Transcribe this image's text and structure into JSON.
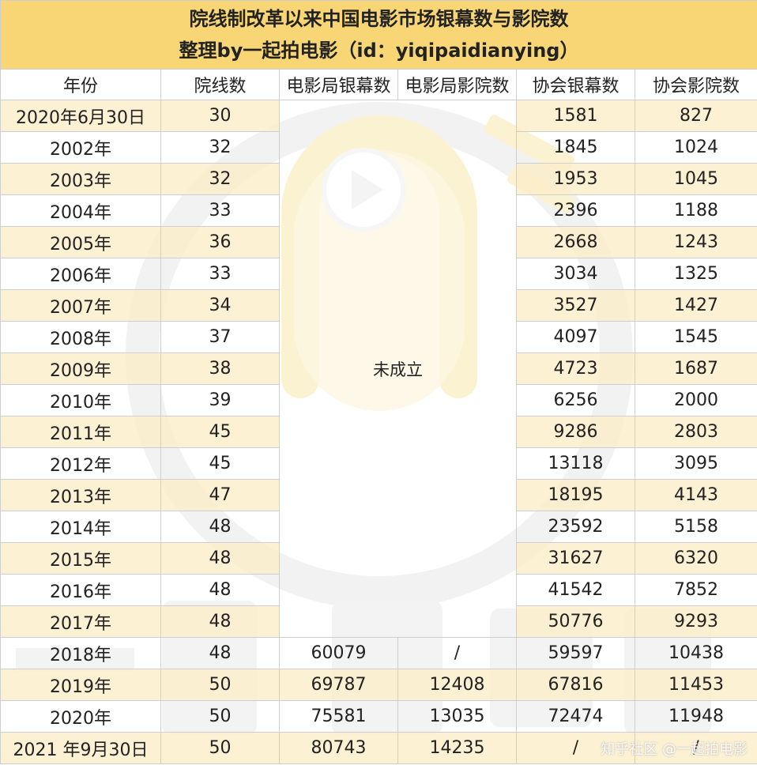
{
  "title": {
    "line1": "院线制改革以来中国电影市场银幕数与影院数",
    "line2": "整理by一起拍电影（id：yiqipaidianying）"
  },
  "columns": [
    "年份",
    "院线数",
    "电影局银幕数",
    "电影局影院数",
    "协会银幕数",
    "协会影院数"
  ],
  "merged_note": "未成立",
  "rows": [
    {
      "year": "2020年6月30日",
      "chains": "30",
      "screens_bureau": "",
      "cinemas_bureau": "",
      "screens_assoc": "1581",
      "cinemas_assoc": "827"
    },
    {
      "year": "2002年",
      "chains": "32",
      "screens_bureau": "",
      "cinemas_bureau": "",
      "screens_assoc": "1845",
      "cinemas_assoc": "1024"
    },
    {
      "year": "2003年",
      "chains": "32",
      "screens_bureau": "",
      "cinemas_bureau": "",
      "screens_assoc": "1953",
      "cinemas_assoc": "1045"
    },
    {
      "year": "2004年",
      "chains": "33",
      "screens_bureau": "",
      "cinemas_bureau": "",
      "screens_assoc": "2396",
      "cinemas_assoc": "1188"
    },
    {
      "year": "2005年",
      "chains": "36",
      "screens_bureau": "",
      "cinemas_bureau": "",
      "screens_assoc": "2668",
      "cinemas_assoc": "1243"
    },
    {
      "year": "2006年",
      "chains": "33",
      "screens_bureau": "",
      "cinemas_bureau": "",
      "screens_assoc": "3034",
      "cinemas_assoc": "1325"
    },
    {
      "year": "2007年",
      "chains": "34",
      "screens_bureau": "",
      "cinemas_bureau": "",
      "screens_assoc": "3527",
      "cinemas_assoc": "1427"
    },
    {
      "year": "2008年",
      "chains": "37",
      "screens_bureau": "",
      "cinemas_bureau": "",
      "screens_assoc": "4097",
      "cinemas_assoc": "1545"
    },
    {
      "year": "2009年",
      "chains": "38",
      "screens_bureau": "",
      "cinemas_bureau": "",
      "screens_assoc": "4723",
      "cinemas_assoc": "1687"
    },
    {
      "year": "2010年",
      "chains": "39",
      "screens_bureau": "",
      "cinemas_bureau": "",
      "screens_assoc": "6256",
      "cinemas_assoc": "2000"
    },
    {
      "year": "2011年",
      "chains": "45",
      "screens_bureau": "",
      "cinemas_bureau": "",
      "screens_assoc": "9286",
      "cinemas_assoc": "2803"
    },
    {
      "year": "2012年",
      "chains": "45",
      "screens_bureau": "",
      "cinemas_bureau": "",
      "screens_assoc": "13118",
      "cinemas_assoc": "3095"
    },
    {
      "year": "2013年",
      "chains": "47",
      "screens_bureau": "",
      "cinemas_bureau": "",
      "screens_assoc": "18195",
      "cinemas_assoc": "4143"
    },
    {
      "year": "2014年",
      "chains": "48",
      "screens_bureau": "",
      "cinemas_bureau": "",
      "screens_assoc": "23592",
      "cinemas_assoc": "5158"
    },
    {
      "year": "2015年",
      "chains": "48",
      "screens_bureau": "",
      "cinemas_bureau": "",
      "screens_assoc": "31627",
      "cinemas_assoc": "6320"
    },
    {
      "year": "2016年",
      "chains": "48",
      "screens_bureau": "",
      "cinemas_bureau": "",
      "screens_assoc": "41542",
      "cinemas_assoc": "7852"
    },
    {
      "year": "2017年",
      "chains": "48",
      "screens_bureau": "",
      "cinemas_bureau": "",
      "screens_assoc": "50776",
      "cinemas_assoc": "9293"
    },
    {
      "year": "2018年",
      "chains": "48",
      "screens_bureau": "60079",
      "cinemas_bureau": "/",
      "screens_assoc": "59597",
      "cinemas_assoc": "10438"
    },
    {
      "year": "2019年",
      "chains": "50",
      "screens_bureau": "69787",
      "cinemas_bureau": "12408",
      "screens_assoc": "67816",
      "cinemas_assoc": "11453"
    },
    {
      "year": "2020年",
      "chains": "50",
      "screens_bureau": "75581",
      "cinemas_bureau": "13035",
      "screens_assoc": "72474",
      "cinemas_assoc": "11948"
    },
    {
      "year": "2021 年9月30日",
      "chains": "50",
      "screens_bureau": "80743",
      "cinemas_bureau": "14235",
      "screens_assoc": "/",
      "cinemas_assoc": "/"
    }
  ],
  "merged_rows": 17,
  "watermark_text": "一起拍电影",
  "footer_watermark": "知乎社区 @一起拍电影",
  "colors": {
    "title_bg": "#F7D36A",
    "odd_row_bg": "#FDEECC",
    "watermark_yellow": "#F6E7A8",
    "watermark_gray": "#E6E6E6",
    "grid": "#CFCFCF"
  }
}
